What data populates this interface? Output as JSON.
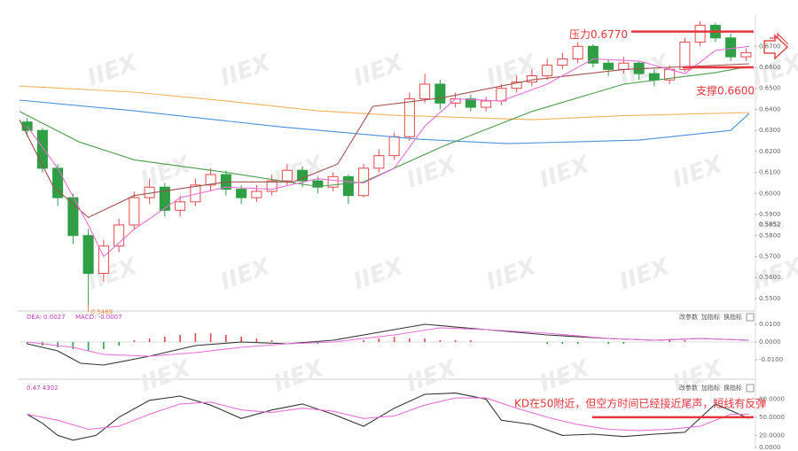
{
  "chart_data": [
    {
      "type": "candlestick",
      "xlim": [
        -0.5,
        47.5
      ],
      "ylim": [
        0.5445,
        0.6836
      ],
      "yticks": [
        {
          "value": 0.67,
          "label": "0.6700"
        },
        {
          "value": 0.66,
          "label": "0.6600"
        },
        {
          "value": 0.65,
          "label": "0.6500"
        },
        {
          "value": 0.64,
          "label": "0.6400"
        },
        {
          "value": 0.63,
          "label": "0.6300"
        },
        {
          "value": 0.62,
          "label": "0.6200"
        },
        {
          "value": 0.61,
          "label": "0.6100"
        },
        {
          "value": 0.6,
          "label": "0.6000"
        },
        {
          "value": 0.59,
          "label": "0.5900"
        },
        {
          "value": 0.58,
          "label": "0.5800"
        },
        {
          "value": 0.57,
          "label": "0.5700"
        },
        {
          "value": 0.56,
          "label": "0.5600"
        },
        {
          "value": 0.55,
          "label": "0.5500"
        }
      ],
      "up_color": "#e5484d",
      "down_color": "#2f9e44",
      "open": [
        0.634,
        0.63,
        0.612,
        0.598,
        0.58,
        0.562,
        0.575,
        0.585,
        0.598,
        0.603,
        0.592,
        0.596,
        0.604,
        0.609,
        0.602,
        0.598,
        0.601,
        0.606,
        0.611,
        0.606,
        0.603,
        0.608,
        0.599,
        0.612,
        0.618,
        0.627,
        0.645,
        0.652,
        0.643,
        0.645,
        0.641,
        0.644,
        0.65,
        0.653,
        0.656,
        0.661,
        0.664,
        0.67,
        0.662,
        0.659,
        0.662,
        0.657,
        0.654,
        0.659,
        0.672,
        0.68,
        0.674,
        0.665
      ],
      "high": [
        0.636,
        0.631,
        0.614,
        0.6,
        0.583,
        0.578,
        0.588,
        0.601,
        0.607,
        0.605,
        0.599,
        0.607,
        0.612,
        0.611,
        0.604,
        0.604,
        0.609,
        0.614,
        0.613,
        0.608,
        0.61,
        0.609,
        0.614,
        0.621,
        0.629,
        0.648,
        0.657,
        0.654,
        0.648,
        0.647,
        0.646,
        0.652,
        0.656,
        0.659,
        0.664,
        0.667,
        0.672,
        0.671,
        0.664,
        0.665,
        0.663,
        0.659,
        0.661,
        0.674,
        0.682,
        0.681,
        0.676,
        0.669
      ],
      "low": [
        0.627,
        0.61,
        0.594,
        0.576,
        0.5469,
        0.558,
        0.572,
        0.583,
        0.595,
        0.589,
        0.589,
        0.594,
        0.601,
        0.599,
        0.595,
        0.596,
        0.599,
        0.604,
        0.603,
        0.6,
        0.601,
        0.595,
        0.598,
        0.61,
        0.616,
        0.625,
        0.643,
        0.64,
        0.641,
        0.639,
        0.639,
        0.642,
        0.648,
        0.651,
        0.654,
        0.659,
        0.662,
        0.66,
        0.656,
        0.657,
        0.654,
        0.651,
        0.652,
        0.658,
        0.67,
        0.672,
        0.663,
        0.663
      ],
      "close": [
        0.63,
        0.612,
        0.598,
        0.58,
        0.562,
        0.575,
        0.585,
        0.598,
        0.603,
        0.592,
        0.596,
        0.604,
        0.609,
        0.602,
        0.598,
        0.601,
        0.606,
        0.611,
        0.606,
        0.603,
        0.608,
        0.599,
        0.612,
        0.618,
        0.627,
        0.645,
        0.652,
        0.643,
        0.645,
        0.641,
        0.644,
        0.65,
        0.653,
        0.656,
        0.661,
        0.664,
        0.67,
        0.662,
        0.659,
        0.662,
        0.657,
        0.654,
        0.659,
        0.672,
        0.68,
        0.674,
        0.665,
        0.667
      ],
      "series": [
        {
          "color": "#f2b25c",
          "x": [
            -0.5,
            7,
            13,
            19,
            24,
            33,
            39,
            47.2
          ],
          "values": [
            0.6511,
            0.6482,
            0.644,
            0.6393,
            0.6372,
            0.6351,
            0.637,
            0.6385
          ]
        },
        {
          "color": "#4a90d9",
          "x": [
            -0.5,
            7,
            16.5,
            25.6,
            31.4,
            40,
            46,
            47.2
          ],
          "values": [
            0.6444,
            0.6393,
            0.6317,
            0.6258,
            0.6237,
            0.6254,
            0.63,
            0.638
          ]
        },
        {
          "color": "#4c9a4c",
          "x": [
            -0.5,
            3.4,
            7,
            13,
            19,
            22,
            27.2,
            33,
            39,
            45,
            47.2
          ],
          "values": [
            0.639,
            0.6245,
            0.616,
            0.61,
            0.6033,
            0.6055,
            0.6225,
            0.639,
            0.652,
            0.6575,
            0.6604
          ]
        },
        {
          "color": "#a0524d",
          "x": [
            -0.5,
            1.7,
            4,
            7,
            13,
            17.4,
            20.3,
            22.6,
            27.2,
            33,
            39,
            47.2
          ],
          "values": [
            0.635,
            0.6033,
            0.5886,
            0.599,
            0.6055,
            0.6055,
            0.614,
            0.6414,
            0.6456,
            0.654,
            0.659,
            0.6617
          ]
        },
        {
          "color": "#e86fd6",
          "x": [
            0,
            2,
            4,
            5,
            7,
            10,
            13,
            16,
            19,
            22,
            24,
            26,
            28,
            31,
            34,
            37,
            40,
            43,
            45,
            47.2
          ],
          "values": [
            0.632,
            0.612,
            0.585,
            0.57,
            0.583,
            0.598,
            0.603,
            0.602,
            0.607,
            0.605,
            0.612,
            0.632,
            0.645,
            0.644,
            0.652,
            0.664,
            0.663,
            0.657,
            0.668,
            0.67
          ]
        }
      ],
      "price_marker": 0.5852,
      "annotations": [
        {
          "text": "压力0.6770",
          "value": 0.677
        },
        {
          "text": "支撑0.6600",
          "value": 0.66
        }
      ],
      "watermark": "IIEX"
    },
    {
      "type": "bar",
      "xlim": [
        -0.5,
        47.5
      ],
      "ylim": [
        -0.0195,
        0.017
      ],
      "yticks": [
        {
          "value": 0.01,
          "label": "0.0100"
        },
        {
          "value": 0,
          "label": "0.0000"
        },
        {
          "value": -0.01,
          "label": "-0.0100"
        }
      ],
      "header": [
        "DEA: 0.0027",
        "MACD: -0.0007"
      ],
      "buttons": [
        "改参数",
        "加指标",
        "换指标"
      ],
      "up_color": "#e5484d",
      "down_color": "#2f9e44",
      "values": [
        -0.001,
        -0.002,
        -0.003,
        -0.004,
        -0.005,
        -0.004,
        -0.002,
        0.001,
        0.002,
        0.003,
        0.004,
        0.005,
        0.005,
        0.004,
        0.003,
        0.002,
        0.001,
        0.0,
        -0.001,
        -0.001,
        0.0,
        0.0,
        0.001,
        0.002,
        0.003,
        0.002,
        0.002,
        0.001,
        0.001,
        0.001,
        0.0,
        0.0,
        0.0,
        0.0,
        -0.001,
        -0.001,
        -0.001,
        0.0,
        -0.001,
        -0.001,
        0.0,
        0.0,
        0.001,
        0.001,
        0.0,
        0.0,
        0.0,
        0.0
      ],
      "series": [
        {
          "color": "#333333",
          "x": [
            0,
            2,
            3.5,
            5,
            8,
            11,
            14,
            17,
            20,
            24,
            26,
            30,
            34,
            38,
            41,
            44,
            47.2
          ],
          "values": [
            -0.001,
            -0.005,
            -0.012,
            -0.013,
            -0.008,
            -0.002,
            0.0,
            -0.001,
            0.001,
            0.007,
            0.01,
            0.007,
            0.004,
            0.002,
            0.001,
            0.002,
            0.001
          ]
        },
        {
          "color": "#e86fd6",
          "x": [
            0,
            3,
            5,
            8,
            11,
            14,
            17,
            20,
            24,
            27,
            30,
            34,
            38,
            41,
            44,
            47.2
          ],
          "values": [
            0.0,
            -0.003,
            -0.007,
            -0.008,
            -0.006,
            -0.003,
            -0.001,
            0.0,
            0.004,
            0.008,
            0.007,
            0.005,
            0.002,
            0.001,
            0.002,
            0.001
          ]
        }
      ]
    },
    {
      "type": "line",
      "xlim": [
        -0.5,
        47.5
      ],
      "ylim": [
        0,
        107
      ],
      "yticks": [
        {
          "value": 80,
          "label": "80.0000"
        },
        {
          "value": 50,
          "label": "50.0000"
        },
        {
          "value": 20,
          "label": "20.0000"
        },
        {
          "value": 0,
          "label": "0.0000"
        }
      ],
      "header": [
        "0.47 4302"
      ],
      "buttons": [
        "改参数",
        "加指标",
        "换指标"
      ],
      "series": [
        {
          "color": "#333333",
          "x": [
            0,
            1,
            2,
            3,
            4.5,
            6,
            8,
            10,
            12,
            14,
            16,
            18,
            20,
            22,
            24,
            26,
            28,
            30,
            31,
            33,
            35,
            37,
            39,
            41,
            43,
            45,
            47.2
          ],
          "values": [
            55,
            40,
            20,
            12,
            20,
            50,
            78,
            85,
            70,
            48,
            62,
            72,
            55,
            35,
            65,
            88,
            90,
            80,
            45,
            38,
            20,
            22,
            18,
            22,
            25,
            72,
            48
          ]
        },
        {
          "color": "#e86fd6",
          "x": [
            0,
            2,
            4,
            6,
            8,
            10,
            12,
            14,
            16,
            18,
            20,
            22,
            24,
            26,
            28,
            30,
            32,
            34,
            36,
            38,
            40,
            42,
            44,
            46,
            47.2
          ],
          "values": [
            55,
            45,
            30,
            35,
            55,
            72,
            75,
            62,
            58,
            65,
            60,
            48,
            52,
            70,
            82,
            82,
            65,
            50,
            38,
            30,
            28,
            30,
            35,
            55,
            55
          ]
        }
      ],
      "annotation": {
        "text": "KD在50附近，但空方时间已经接近尾声，短线有反弹",
        "value": 50
      }
    }
  ]
}
